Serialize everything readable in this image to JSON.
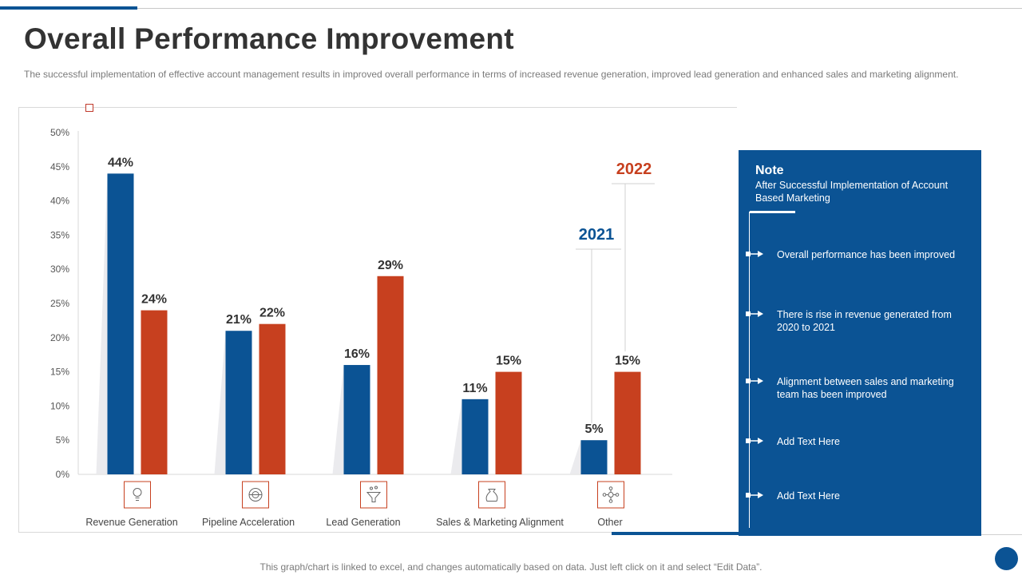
{
  "page": {
    "title": "Overall Performance Improvement",
    "subtitle": "The successful implementation of effective account management results in improved overall performance in terms of increased revenue generation, improved lead generation and enhanced sales and marketing alignment.",
    "footer": "This graph/chart is linked to excel,  and changes automatically based on data. Just left click on it and select “Edit Data”."
  },
  "note": {
    "title": "Note",
    "subtitle": "After Successful Implementation  of Account Based Marketing",
    "items": [
      "Overall performance  has been improved",
      "There is rise in revenue  generated from 2020 to 2021",
      "Alignment between sales and marketing team has been improved",
      "Add Text Here",
      "Add Text Here"
    ]
  },
  "colors": {
    "series_2021": "#0b5394",
    "series_2022": "#c7401f",
    "axis_text": "#555555"
  },
  "chart_data": {
    "type": "bar",
    "categories": [
      "Revenue  Generation",
      "Pipeline Acceleration",
      "Lead Generation",
      "Sales & Marketing Alignment",
      "Other"
    ],
    "category_icons": [
      "lightbulb-icon",
      "pipeline-gear-icon",
      "funnel-icon",
      "money-bag-icon",
      "network-icon"
    ],
    "series": [
      {
        "name": "2021",
        "values": [
          44,
          21,
          16,
          11,
          5
        ]
      },
      {
        "name": "2022",
        "values": [
          24,
          22,
          29,
          15,
          15
        ]
      }
    ],
    "data_labels": [
      [
        "44%",
        "21%",
        "16%",
        "11%",
        "5%"
      ],
      [
        "24%",
        "22%",
        "29%",
        "15%",
        "15%"
      ]
    ],
    "yticks": [
      "0%",
      "5%",
      "10%",
      "15%",
      "20%",
      "25%",
      "30%",
      "35%",
      "40%",
      "45%",
      "50%"
    ],
    "ylim": [
      0,
      50
    ],
    "title": "",
    "xlabel": "",
    "ylabel": "",
    "legend": "callouts above last category",
    "grid": false
  }
}
